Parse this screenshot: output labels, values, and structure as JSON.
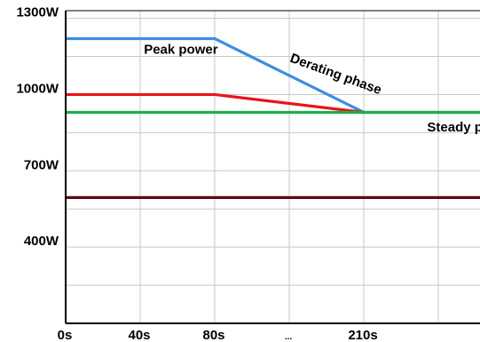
{
  "chart_data": {
    "type": "line",
    "x_tick_labels": [
      "0s",
      "40s",
      "80s",
      "...",
      "210s"
    ],
    "y_tick_labels": [
      "1300W",
      "1000W",
      "700W",
      "400W"
    ],
    "y_ticks": [
      1300,
      1000,
      700,
      400
    ],
    "ylim": [
      100,
      1330
    ],
    "x_positions": [
      0,
      1,
      2,
      3,
      4,
      5
    ],
    "grid": true,
    "series": [
      {
        "color": "#3b8ee0",
        "points": [
          [
            0,
            1220
          ],
          [
            2,
            1220
          ],
          [
            4,
            930
          ],
          [
            5.6,
            930
          ]
        ]
      },
      {
        "color": "#e8141c",
        "points": [
          [
            0,
            1000
          ],
          [
            2,
            1000
          ],
          [
            4,
            930
          ]
        ]
      },
      {
        "color": "#1fad4e",
        "points": [
          [
            0,
            930
          ],
          [
            5.6,
            930
          ]
        ]
      },
      {
        "color": "#5c0a10",
        "points": [
          [
            0,
            595
          ],
          [
            5.6,
            595
          ]
        ]
      }
    ],
    "annotations": [
      {
        "text": "Peak power",
        "x": 1.05,
        "y": 1160,
        "rotate": 0
      },
      {
        "text": "Derating phase",
        "x": 3.0,
        "y": 1130,
        "rotate": 20
      },
      {
        "text": "Steady power",
        "x": 4.85,
        "y": 855,
        "rotate": 0
      }
    ]
  }
}
